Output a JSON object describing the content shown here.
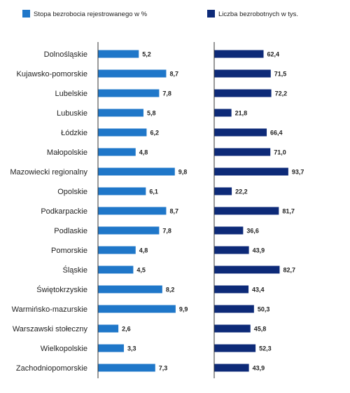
{
  "chart_data": {
    "type": "bar",
    "orientation": "horizontal",
    "categories": [
      "Dolnośląskie",
      "Kujawsko-pomorskie",
      "Lubelskie",
      "Lubuskie",
      "Łódzkie",
      "Małopolskie",
      "Mazowiecki regionalny",
      "Opolskie",
      "Podkarpackie",
      "Podlaskie",
      "Pomorskie",
      "Śląskie",
      "Świętokrzyskie",
      "Warmińsko-mazurskie",
      "Warszawski stołeczny",
      "Wielkopolskie",
      "Zachodniopomorskie"
    ],
    "series": [
      {
        "name": "Stopa bezrobocia rejestrowanego w %",
        "color": "#1f77c9",
        "values": [
          5.2,
          8.7,
          7.8,
          5.8,
          6.2,
          4.8,
          9.8,
          6.1,
          8.7,
          7.8,
          4.8,
          4.5,
          8.2,
          9.9,
          2.6,
          3.3,
          7.3
        ],
        "labels": [
          "5,2",
          "8,7",
          "7,8",
          "5,8",
          "6,2",
          "4,8",
          "9,8",
          "6,1",
          "8,7",
          "7,8",
          "4,8",
          "4,5",
          "8,2",
          "9,9",
          "2,6",
          "3,3",
          "7,3"
        ]
      },
      {
        "name": "Liczba bezrobotnych w tys.",
        "color": "#0d2a78",
        "values": [
          62.4,
          71.5,
          72.2,
          21.8,
          66.4,
          71.0,
          93.7,
          22.2,
          81.7,
          36.6,
          43.9,
          82.7,
          43.4,
          50.3,
          45.8,
          52.3,
          43.9
        ],
        "labels": [
          "62,4",
          "71,5",
          "72,2",
          "21,8",
          "66,4",
          "71,0",
          "93,7",
          "22,2",
          "81,7",
          "36,6",
          "43,9",
          "82,7",
          "43,4",
          "50,3",
          "45,8",
          "52,3",
          "43,9"
        ]
      }
    ],
    "legend_position": "top",
    "grid": false
  }
}
